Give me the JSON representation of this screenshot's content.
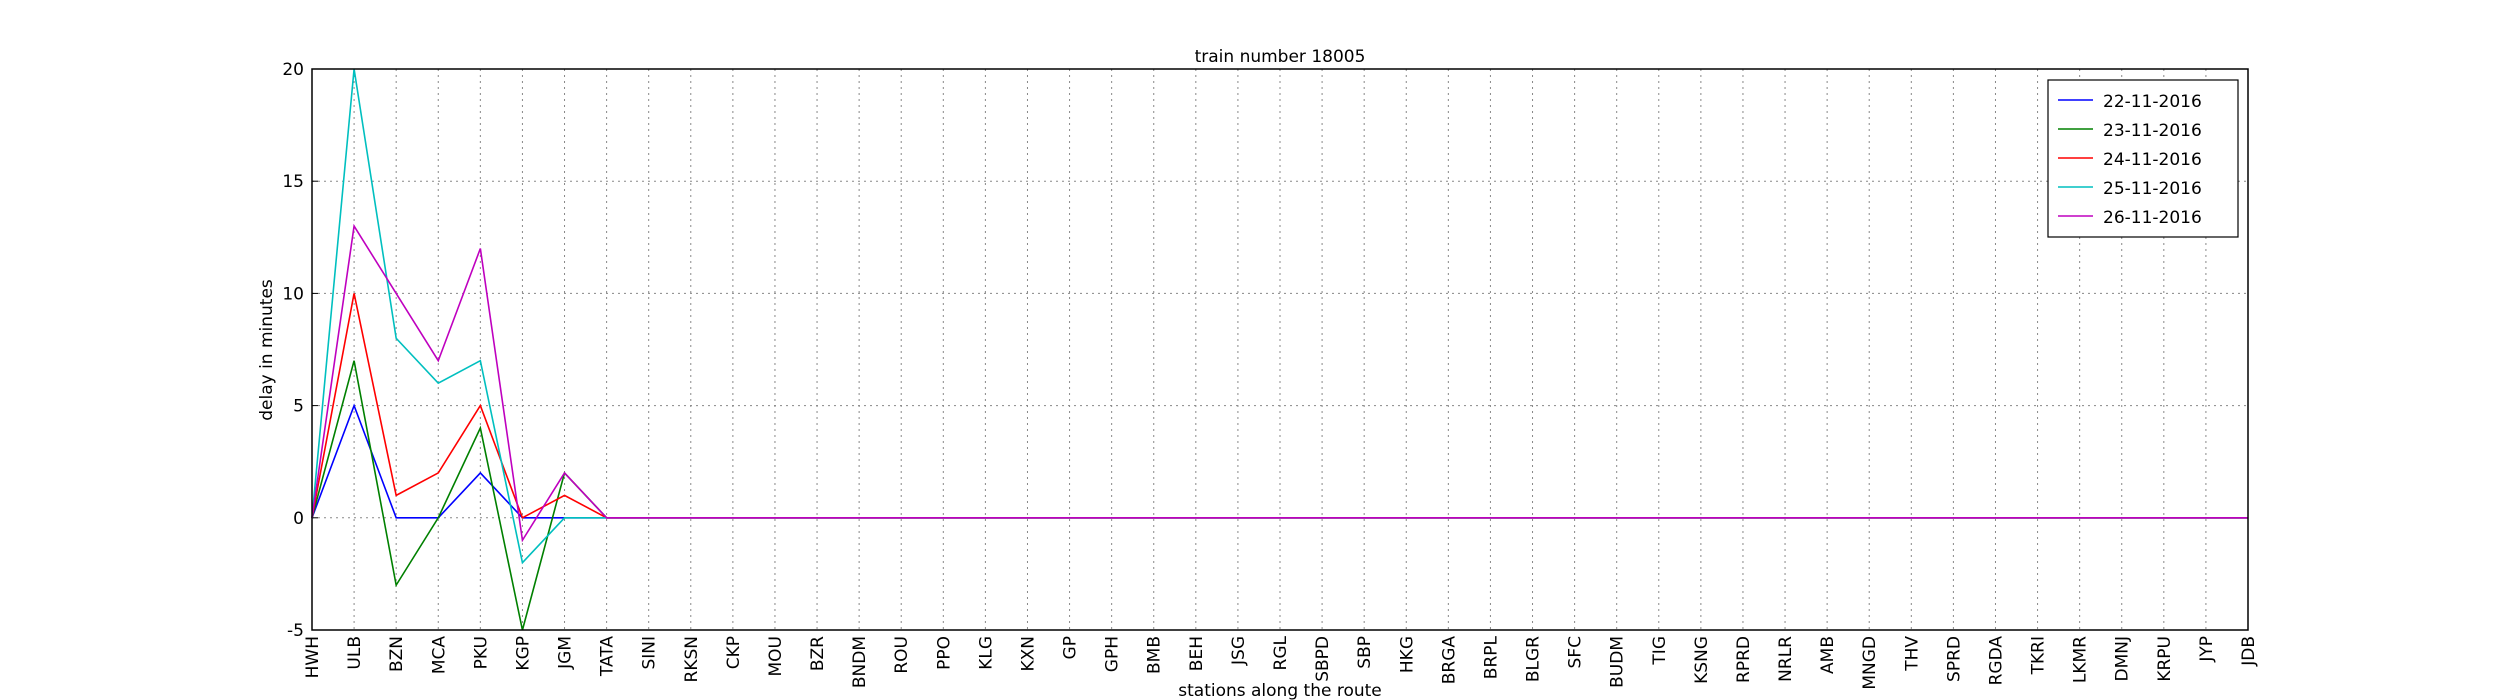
{
  "chart_data": {
    "type": "line",
    "title": "train number 18005",
    "xlabel": "stations along the route",
    "ylabel": "delay in minutes",
    "categories": [
      "HWH",
      "ULB",
      "BZN",
      "MCA",
      "PKU",
      "KGP",
      "JGM",
      "TATA",
      "SINI",
      "RKSN",
      "CKP",
      "MOU",
      "BZR",
      "BNDM",
      "ROU",
      "PPO",
      "KLG",
      "KXN",
      "GP",
      "GPH",
      "BMB",
      "BEH",
      "JSG",
      "RGL",
      "SBPD",
      "SBP",
      "HKG",
      "BRGA",
      "BRPL",
      "BLGR",
      "SFC",
      "BUDM",
      "TIG",
      "KSNG",
      "RPRD",
      "NRLR",
      "AMB",
      "MNGD",
      "THV",
      "SPRD",
      "RGDA",
      "TKRI",
      "LKMR",
      "DMNJ",
      "KRPU",
      "JYP",
      "JDB"
    ],
    "series": [
      {
        "name": "22-11-2016",
        "color": "#0000ff",
        "values": [
          0,
          5,
          0,
          0,
          2,
          0,
          0,
          0,
          0,
          0,
          0,
          0,
          0,
          0,
          0,
          0,
          0,
          0,
          0,
          0,
          0,
          0,
          0,
          0,
          0,
          0,
          0,
          0,
          0,
          0,
          0,
          0,
          0,
          0,
          0,
          0,
          0,
          0,
          0,
          0,
          0,
          0,
          0,
          0,
          0,
          0,
          0
        ]
      },
      {
        "name": "23-11-2016",
        "color": "#008000",
        "values": [
          0,
          7,
          -3,
          0,
          4,
          -5,
          2,
          0,
          0,
          0,
          0,
          0,
          0,
          0,
          0,
          0,
          0,
          0,
          0,
          0,
          0,
          0,
          0,
          0,
          0,
          0,
          0,
          0,
          0,
          0,
          0,
          0,
          0,
          0,
          0,
          0,
          0,
          0,
          0,
          0,
          0,
          0,
          0,
          0,
          0,
          0,
          0
        ]
      },
      {
        "name": "24-11-2016",
        "color": "#ff0000",
        "values": [
          0,
          10,
          1,
          2,
          5,
          0,
          1,
          0,
          0,
          0,
          0,
          0,
          0,
          0,
          0,
          0,
          0,
          0,
          0,
          0,
          0,
          0,
          0,
          0,
          0,
          0,
          0,
          0,
          0,
          0,
          0,
          0,
          0,
          0,
          0,
          0,
          0,
          0,
          0,
          0,
          0,
          0,
          0,
          0,
          0,
          0,
          0
        ]
      },
      {
        "name": "25-11-2016",
        "color": "#00bfbf",
        "values": [
          0,
          20,
          8,
          6,
          7,
          -2,
          0,
          0,
          0,
          0,
          0,
          0,
          0,
          0,
          0,
          0,
          0,
          0,
          0,
          0,
          0,
          0,
          0,
          0,
          0,
          0,
          0,
          0,
          0,
          0,
          0,
          0,
          0,
          0,
          0,
          0,
          0,
          0,
          0,
          0,
          0,
          0,
          0,
          0,
          0,
          0,
          0
        ]
      },
      {
        "name": "26-11-2016",
        "color": "#bf00bf",
        "values": [
          0,
          13,
          10,
          7,
          12,
          -1,
          2,
          0,
          0,
          0,
          0,
          0,
          0,
          0,
          0,
          0,
          0,
          0,
          0,
          0,
          0,
          0,
          0,
          0,
          0,
          0,
          0,
          0,
          0,
          0,
          0,
          0,
          0,
          0,
          0,
          0,
          0,
          0,
          0,
          0,
          0,
          0,
          0,
          0,
          0,
          0,
          0
        ]
      }
    ],
    "ylim": [
      -5,
      20
    ],
    "yticks": [
      -5,
      0,
      5,
      10,
      15,
      20
    ],
    "grid": true,
    "legend": "upper right"
  }
}
